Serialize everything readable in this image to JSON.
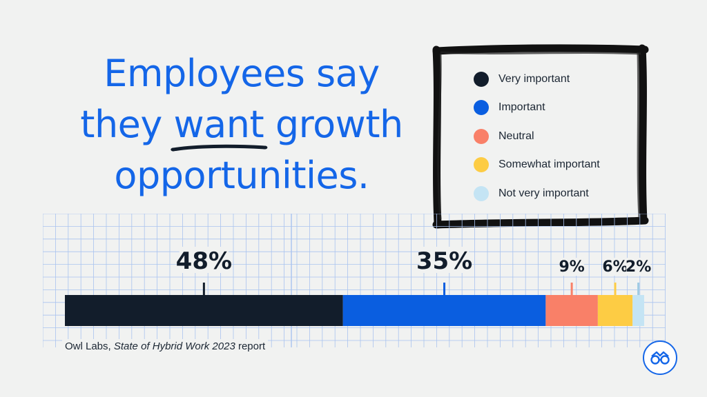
{
  "headline": {
    "line1": "Employees say",
    "line2_pre": "they ",
    "line2_emph": "want",
    "line2_post": " growth",
    "line3": "opportunities."
  },
  "legend": [
    {
      "label": "Very important",
      "color": "#121d2b"
    },
    {
      "label": "Important",
      "color": "#0a5ee0"
    },
    {
      "label": "Neutral",
      "color": "#f98068"
    },
    {
      "label": "Somewhat important",
      "color": "#fdcc44"
    },
    {
      "label": "Not very important",
      "color": "#c4e4f4"
    }
  ],
  "chart_data": {
    "type": "bar",
    "orientation": "horizontal-stacked",
    "series": [
      {
        "name": "Very important",
        "value": 48,
        "label": "48%",
        "color": "#121d2b"
      },
      {
        "name": "Important",
        "value": 35,
        "label": "35%",
        "color": "#0a5ee0"
      },
      {
        "name": "Neutral",
        "value": 9,
        "label": "9%",
        "color": "#f98068"
      },
      {
        "name": "Somewhat important",
        "value": 6,
        "label": "6%",
        "color": "#fdcc44"
      },
      {
        "name": "Not very important",
        "value": 2,
        "label": "2%",
        "color": "#c4e4f4"
      }
    ],
    "grid": true,
    "legend_position": "top-right"
  },
  "source": {
    "prefix": "Owl Labs, ",
    "title": "State of Hybrid Work 2023",
    "suffix": " report"
  },
  "colors": {
    "accent": "#1466e8",
    "grid": "#a9c3f0",
    "background": "#f1f2f1"
  },
  "logo": {
    "icon": "owl-glasses-icon"
  }
}
